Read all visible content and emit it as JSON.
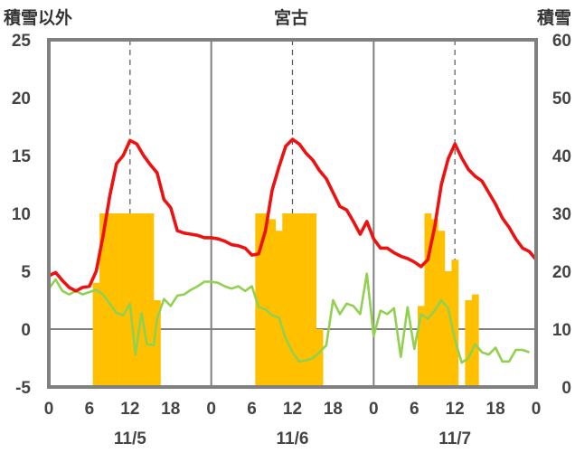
{
  "chart_data": {
    "type": "line",
    "title": "宮古",
    "ylabel_left": "積雪以外",
    "ylabel_right": "積雪",
    "ylim_left": [
      -5,
      25
    ],
    "ylim_right": [
      0,
      60
    ],
    "yticks_left": [
      "25",
      "20",
      "15",
      "10",
      "5",
      "0",
      "-5"
    ],
    "yticks_right": [
      "60",
      "50",
      "40",
      "30",
      "20",
      "10",
      "0"
    ],
    "x_unit": "hours",
    "xlim": [
      0,
      72
    ],
    "xtick_labels": [
      "0",
      "6",
      "12",
      "18",
      "0",
      "6",
      "12",
      "18",
      "0",
      "6",
      "12",
      "18",
      "0"
    ],
    "date_labels": [
      "11/5",
      "11/6",
      "11/7"
    ],
    "grid": "dashed verticals at 12h, solid verticals at day boundaries",
    "colors": {
      "red": "#ee1111",
      "green": "#92d050",
      "bars": "#ffc000",
      "purple": "#7030a0",
      "axis": "#808080"
    },
    "series": [
      {
        "axis": "left",
        "points": [
          [
            0,
            4.6
          ],
          [
            1,
            4.9
          ],
          [
            2,
            4.2
          ],
          [
            3,
            3.6
          ],
          [
            4,
            3.3
          ],
          [
            5,
            3.6
          ],
          [
            6,
            3.7
          ],
          [
            7,
            5
          ],
          [
            8,
            8
          ],
          [
            9,
            11.5
          ],
          [
            10,
            14.3
          ],
          [
            11,
            15
          ],
          [
            12,
            16.3
          ],
          [
            13,
            16
          ],
          [
            14,
            15
          ],
          [
            15,
            14.2
          ],
          [
            16,
            13.5
          ],
          [
            17,
            11.2
          ],
          [
            18,
            10.5
          ],
          [
            19,
            8.5
          ],
          [
            20,
            8.3
          ],
          [
            21,
            8.2
          ],
          [
            22,
            8.1
          ],
          [
            23,
            7.9
          ],
          [
            24,
            7.9
          ],
          [
            25,
            7.8
          ],
          [
            26,
            7.6
          ],
          [
            27,
            7.3
          ],
          [
            28,
            7.2
          ],
          [
            29,
            7
          ],
          [
            30,
            6.4
          ],
          [
            31,
            6.5
          ],
          [
            32,
            8.5
          ],
          [
            33,
            12
          ],
          [
            34,
            14
          ],
          [
            35,
            15.8
          ],
          [
            36,
            16.4
          ],
          [
            37,
            16
          ],
          [
            38,
            15.2
          ],
          [
            39,
            14.6
          ],
          [
            40,
            13.7
          ],
          [
            41,
            13
          ],
          [
            42,
            11.8
          ],
          [
            43,
            10.6
          ],
          [
            44,
            10.3
          ],
          [
            45,
            9.3
          ],
          [
            46,
            8.2
          ],
          [
            47,
            9.3
          ],
          [
            48,
            7.8
          ],
          [
            49,
            7
          ],
          [
            50,
            7
          ],
          [
            51,
            6.6
          ],
          [
            52,
            6.3
          ],
          [
            53,
            6.1
          ],
          [
            54,
            5.8
          ],
          [
            55,
            5.4
          ],
          [
            56,
            6
          ],
          [
            57,
            8.8
          ],
          [
            58,
            12.5
          ],
          [
            59,
            14.7
          ],
          [
            60,
            16
          ],
          [
            61,
            14.8
          ],
          [
            62,
            13.8
          ],
          [
            63,
            13.2
          ],
          [
            64,
            12.8
          ],
          [
            65,
            11.8
          ],
          [
            66,
            10.8
          ],
          [
            67,
            9.6
          ],
          [
            68,
            8.8
          ],
          [
            69,
            7.8
          ],
          [
            70,
            7
          ],
          [
            71,
            6.7
          ],
          [
            72,
            6
          ]
        ]
      },
      {
        "axis": "left",
        "points": [
          [
            0,
            3.5
          ],
          [
            1,
            4.3
          ],
          [
            2,
            3.3
          ],
          [
            3,
            3
          ],
          [
            4,
            3.3
          ],
          [
            5,
            3
          ],
          [
            6,
            3.2
          ],
          [
            7,
            3.4
          ],
          [
            8,
            3
          ],
          [
            9,
            2.2
          ],
          [
            10,
            1.4
          ],
          [
            11,
            1.2
          ],
          [
            12,
            2.2
          ],
          [
            12.8,
            -2.2
          ],
          [
            13.7,
            1.4
          ],
          [
            14.5,
            -1.3
          ],
          [
            15.5,
            -1.4
          ],
          [
            16,
            0.9
          ],
          [
            17,
            2.6
          ],
          [
            18,
            2
          ],
          [
            19,
            2.9
          ],
          [
            20,
            3
          ],
          [
            21,
            3.4
          ],
          [
            22,
            3.7
          ],
          [
            23,
            4.1
          ],
          [
            24,
            4.1
          ],
          [
            25,
            4
          ],
          [
            26,
            3.7
          ],
          [
            27,
            3.5
          ],
          [
            28,
            3.7
          ],
          [
            29,
            3.3
          ],
          [
            30,
            3.7
          ],
          [
            31,
            1.9
          ],
          [
            32,
            1.7
          ],
          [
            33,
            1.2
          ],
          [
            34,
            1
          ],
          [
            35,
            -0.8
          ],
          [
            36,
            -2
          ],
          [
            37,
            -2.8
          ],
          [
            38,
            -2.7
          ],
          [
            39,
            -2.5
          ],
          [
            40,
            -2
          ],
          [
            41,
            -1.4
          ],
          [
            42,
            2.5
          ],
          [
            43,
            1.3
          ],
          [
            44,
            2.2
          ],
          [
            45,
            2
          ],
          [
            46,
            1.3
          ],
          [
            47,
            4.8
          ],
          [
            48,
            -0.6
          ],
          [
            49,
            1.6
          ],
          [
            50,
            1.3
          ],
          [
            51,
            1.8
          ],
          [
            52,
            -2.4
          ],
          [
            53,
            1.9
          ],
          [
            54,
            -1.7
          ],
          [
            55,
            1.3
          ],
          [
            56,
            0.9
          ],
          [
            57,
            1.6
          ],
          [
            58,
            2.5
          ],
          [
            59,
            1.8
          ],
          [
            60,
            -0.9
          ],
          [
            61,
            -2.9
          ],
          [
            62,
            -2.5
          ],
          [
            63,
            -1.3
          ],
          [
            64,
            -2
          ],
          [
            65,
            -2.2
          ],
          [
            66,
            -1.6
          ],
          [
            67,
            -2.8
          ],
          [
            68,
            -2.8
          ],
          [
            69,
            -1.8
          ],
          [
            70,
            -1.8
          ],
          [
            71,
            -2
          ]
        ]
      }
    ],
    "bars": {
      "axis": "right",
      "values": [
        [
          7,
          18
        ],
        [
          8,
          30
        ],
        [
          9,
          30
        ],
        [
          10,
          30
        ],
        [
          11,
          30
        ],
        [
          12,
          30
        ],
        [
          13,
          30
        ],
        [
          14,
          30
        ],
        [
          15,
          30
        ],
        [
          16,
          15
        ],
        [
          31,
          30
        ],
        [
          32,
          30
        ],
        [
          33,
          29
        ],
        [
          34,
          27
        ],
        [
          35,
          30
        ],
        [
          36,
          30
        ],
        [
          37,
          30
        ],
        [
          38,
          30
        ],
        [
          39,
          30
        ],
        [
          40,
          10
        ],
        [
          55,
          14
        ],
        [
          56,
          30
        ],
        [
          57,
          29
        ],
        [
          58,
          27
        ],
        [
          59,
          20
        ],
        [
          60,
          22
        ],
        [
          62,
          15
        ],
        [
          63,
          16
        ]
      ]
    },
    "baseline_line": {
      "axis": "left",
      "value": -5
    }
  }
}
